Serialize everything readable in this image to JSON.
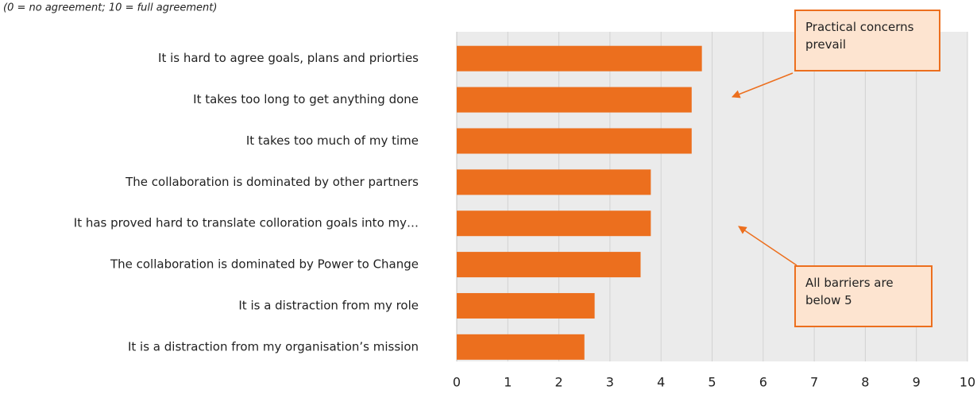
{
  "chart_data": {
    "type": "hbar",
    "subtitle": "(0 = no agreement; 10 = full agreement)",
    "categories": [
      "It is hard to agree goals, plans and priorties",
      "It takes too long to get anything done",
      "It takes too much of my time",
      "The collaboration is dominated by other partners",
      "It has proved hard to translate colloration goals into my…",
      "The collaboration is dominated by Power to Change",
      "It is a distraction from my role",
      "It is a distraction from my organisation’s mission"
    ],
    "values": [
      4.8,
      4.6,
      4.6,
      3.8,
      3.8,
      3.6,
      2.7,
      2.5
    ],
    "color": "#ec6f1e",
    "xlim": [
      0,
      10
    ],
    "xticks": [
      0,
      1,
      2,
      3,
      4,
      5,
      6,
      7,
      8,
      9,
      10
    ],
    "grid": true,
    "annotations": [
      {
        "text": "Practical concerns prevail"
      },
      {
        "text": "All barriers are below 5"
      }
    ]
  }
}
